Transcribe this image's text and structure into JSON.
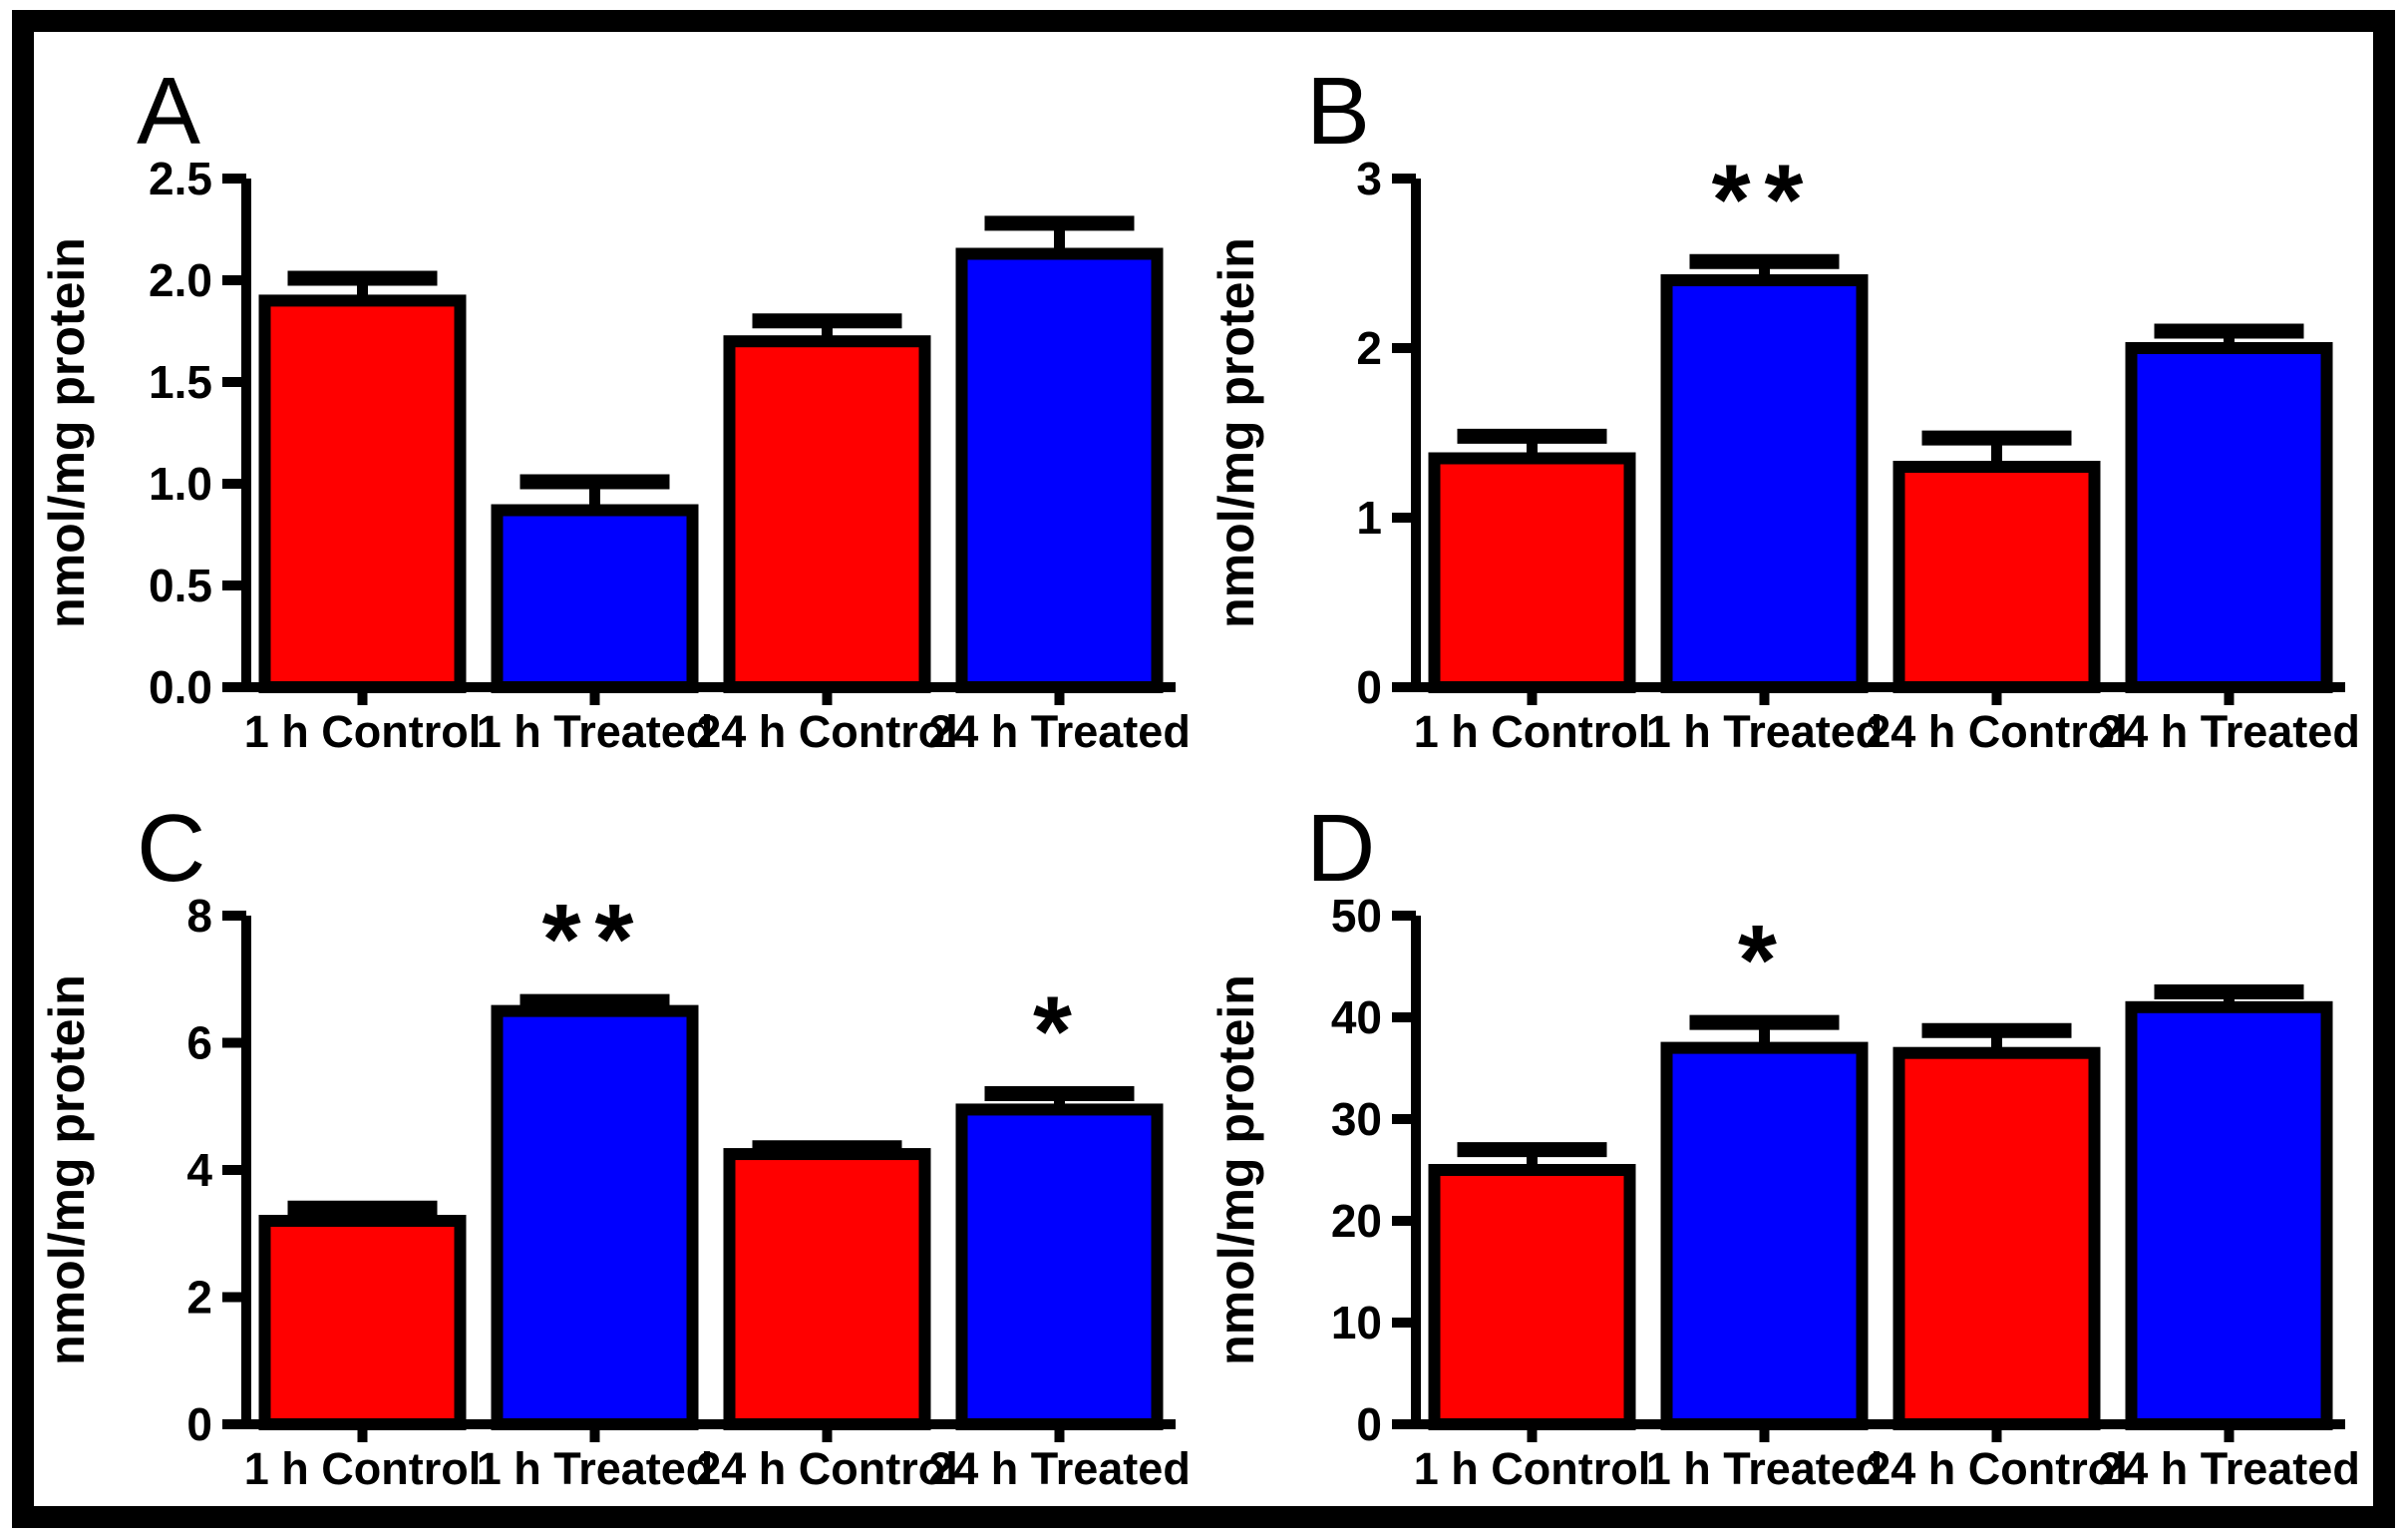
{
  "figure": {
    "background": "#FFFFFF",
    "border_color": "#000000",
    "axis_color": "#000000",
    "bar_border_color": "#000000",
    "series_colors": {
      "control": "#FF0000",
      "treated": "#0000FF"
    },
    "ylabel": "nmol/mg protein",
    "categories": [
      "1 h Control",
      "1 h Treated",
      "24 h Control",
      "24 h Treated"
    ],
    "legend": "none",
    "grid": false
  },
  "chart_data": [
    {
      "type": "bar",
      "panel": "A",
      "title": "",
      "xlabel": "",
      "ylabel": "nmol/mg protein",
      "ylim": [
        0,
        2.5
      ],
      "yticks": [
        0,
        0.5,
        1.0,
        1.5,
        2.0,
        2.5
      ],
      "ytick_labels": [
        "0.0",
        "0.5",
        "1.0",
        "1.5",
        "2.0",
        "2.5"
      ],
      "categories": [
        "1 h Control",
        "1 h Treated",
        "24 h Control",
        "24 h Treated"
      ],
      "values": [
        1.9,
        0.87,
        1.7,
        2.13
      ],
      "errors": [
        0.11,
        0.14,
        0.1,
        0.15
      ],
      "bar_colors": [
        "#FF0000",
        "#0000FF",
        "#FF0000",
        "#0000FF"
      ],
      "significance": [
        "",
        "",
        "",
        ""
      ]
    },
    {
      "type": "bar",
      "panel": "B",
      "title": "",
      "xlabel": "",
      "ylabel": "nmol/mg protein",
      "ylim": [
        0,
        3
      ],
      "yticks": [
        0,
        1,
        2,
        3
      ],
      "ytick_labels": [
        "0",
        "1",
        "2",
        "3"
      ],
      "categories": [
        "1 h Control",
        "1 h Treated",
        "24 h Control",
        "24 h Treated"
      ],
      "values": [
        1.35,
        2.4,
        1.3,
        2.0
      ],
      "errors": [
        0.13,
        0.11,
        0.17,
        0.1
      ],
      "bar_colors": [
        "#FF0000",
        "#0000FF",
        "#FF0000",
        "#0000FF"
      ],
      "significance": [
        "",
        "**",
        "",
        ""
      ]
    },
    {
      "type": "bar",
      "panel": "C",
      "title": "",
      "xlabel": "",
      "ylabel": "nmol/mg protein",
      "ylim": [
        0,
        8
      ],
      "yticks": [
        0,
        2,
        4,
        6,
        8
      ],
      "ytick_labels": [
        "0",
        "2",
        "4",
        "6",
        "8"
      ],
      "categories": [
        "1 h Control",
        "1 h Treated",
        "24 h Control",
        "24 h Treated"
      ],
      "values": [
        3.2,
        6.5,
        4.25,
        4.95
      ],
      "errors": [
        0.2,
        0.15,
        0.1,
        0.25
      ],
      "bar_colors": [
        "#FF0000",
        "#0000FF",
        "#FF0000",
        "#0000FF"
      ],
      "significance": [
        "",
        "**",
        "",
        "*"
      ]
    },
    {
      "type": "bar",
      "panel": "D",
      "title": "",
      "xlabel": "",
      "ylabel": "nmol/mg protein",
      "ylim": [
        0,
        50
      ],
      "yticks": [
        0,
        10,
        20,
        30,
        40,
        50
      ],
      "ytick_labels": [
        "0",
        "10",
        "20",
        "30",
        "40",
        "50"
      ],
      "categories": [
        "1 h Control",
        "1 h Treated",
        "24 h Control",
        "24 h Treated"
      ],
      "values": [
        25,
        37,
        36.5,
        41
      ],
      "errors": [
        2,
        2.5,
        2.2,
        1.5
      ],
      "bar_colors": [
        "#FF0000",
        "#0000FF",
        "#FF0000",
        "#0000FF"
      ],
      "significance": [
        "",
        "*",
        "",
        ""
      ]
    }
  ]
}
